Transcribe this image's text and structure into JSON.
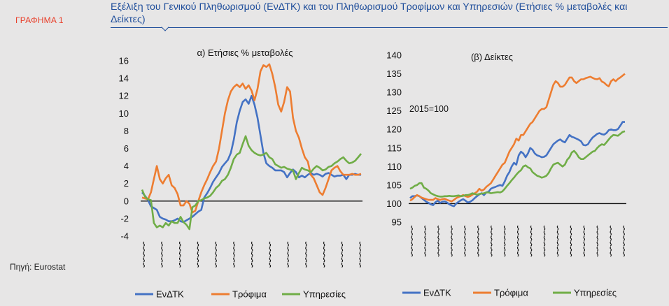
{
  "figure_label": "ΓΡΑΦΗΜΑ 1",
  "source": "Πηγή: Eurostat",
  "title": "Εξέλιξη του Γενικού Πληθωρισμού (ΕνΔΤΚ) και του Πληθωρισμού Τροφίμων και Υπηρεσιών (Ετήσιες % μεταβολές και Δείκτες)",
  "colors": {
    "cpi": "#4472c4",
    "food": "#ed7d31",
    "services": "#70ad47"
  },
  "chart_data": [
    {
      "type": "line",
      "title": "α) Ετήσιες % μεταβολές",
      "ylim": [
        -4,
        16
      ],
      "yticks": [
        16,
        14,
        12,
        10,
        8,
        6,
        4,
        2,
        0,
        -2,
        -4
      ],
      "x_labels_legible": false,
      "n_points": 75,
      "series": [
        {
          "name": "ΕνΔΤΚ",
          "values": [
            1.0,
            0.6,
            0.1,
            -0.6,
            -0.8,
            -1.0,
            -1.8,
            -2.0,
            -2.1,
            -2.3,
            -2.3,
            -2.2,
            -2.0,
            -2.3,
            -2.4,
            -2.2,
            -2.0,
            -1.8,
            -1.5,
            -1.2,
            -1.0,
            0.4,
            0.9,
            1.5,
            2.2,
            2.7,
            3.2,
            3.9,
            4.3,
            4.7,
            5.5,
            7.0,
            9.0,
            10.3,
            11.3,
            11.6,
            11.1,
            12.0,
            11.0,
            9.5,
            7.5,
            5.5,
            4.3,
            4.0,
            3.8,
            3.5,
            3.5,
            3.5,
            3.3,
            2.7,
            3.2,
            3.6,
            3.3,
            2.7,
            2.9,
            2.7,
            3.0,
            3.2,
            3.0,
            3.1,
            3.0,
            2.8,
            3.1,
            3.2,
            3.0,
            2.8,
            2.9,
            2.9,
            3.0,
            2.5,
            3.0,
            3.0,
            3.1,
            3.0,
            3.0
          ]
        },
        {
          "name": "Τρόφιμα",
          "values": [
            0.4,
            0.3,
            0.2,
            1.0,
            2.5,
            4.0,
            2.5,
            2.0,
            2.6,
            3.0,
            1.8,
            1.5,
            0.8,
            -0.5,
            -0.5,
            0.0,
            -0.3,
            -1.3,
            -1.1,
            0.0,
            1.0,
            1.8,
            2.5,
            3.3,
            4.0,
            4.5,
            6.0,
            8.0,
            10.0,
            11.5,
            12.5,
            13.0,
            13.3,
            13.0,
            13.4,
            12.8,
            13.2,
            12.6,
            11.5,
            12.8,
            14.8,
            15.5,
            15.3,
            15.6,
            14.5,
            13.0,
            11.0,
            10.2,
            11.3,
            13.0,
            12.5,
            9.5,
            8.0,
            7.2,
            6.0,
            5.0,
            4.5,
            3.0,
            2.6,
            1.8,
            1.0,
            0.7,
            1.5,
            2.5,
            3.5,
            3.8,
            4.0,
            3.4,
            3.0,
            3.0,
            3.0,
            3.1,
            3.0,
            3.0,
            3.1
          ]
        },
        {
          "name": "Υπηρεσίες",
          "values": [
            1.3,
            0.5,
            0.2,
            0.1,
            -2.5,
            -3.0,
            -2.8,
            -3.0,
            -2.5,
            -2.8,
            -2.3,
            -2.5,
            -2.5,
            -1.8,
            -2.4,
            -2.7,
            -3.2,
            -0.7,
            -0.5,
            0.0,
            0.1,
            0.3,
            0.4,
            0.6,
            1.0,
            1.5,
            1.8,
            2.3,
            2.5,
            3.0,
            3.8,
            4.8,
            5.3,
            5.5,
            6.5,
            7.4,
            6.3,
            5.8,
            5.5,
            5.3,
            5.2,
            5.3,
            5.5,
            5.0,
            4.8,
            4.2,
            4.0,
            3.8,
            3.9,
            3.7,
            3.6,
            3.5,
            2.5,
            3.2,
            3.8,
            3.6,
            3.5,
            3.3,
            3.7,
            4.0,
            3.8,
            3.5,
            3.6,
            3.9,
            4.0,
            4.3,
            4.5,
            4.8,
            5.0,
            4.6,
            4.3,
            4.4,
            4.6,
            5.0,
            5.4
          ]
        }
      ]
    },
    {
      "type": "line",
      "title": "(β) Δείκτες",
      "annotation": "2015=100",
      "ylim": [
        95,
        140
      ],
      "yticks": [
        140,
        135,
        130,
        125,
        120,
        115,
        110,
        105,
        100,
        95
      ],
      "x_labels_legible": false,
      "n_points": 94,
      "series": [
        {
          "name": "ΕνΔΤΚ",
          "values": [
            101.5,
            102.0,
            102.0,
            102.2,
            102.0,
            101.5,
            101.0,
            100.5,
            100.2,
            99.8,
            99.6,
            100.4,
            100.8,
            100.2,
            100.5,
            100.6,
            100.3,
            99.8,
            99.5,
            99.3,
            100.0,
            100.5,
            100.9,
            101.2,
            100.8,
            100.3,
            100.5,
            100.9,
            101.5,
            102.0,
            102.5,
            102.8,
            102.3,
            103.0,
            103.2,
            104.0,
            104.3,
            104.5,
            104.8,
            105.0,
            104.8,
            106.0,
            107.5,
            108.5,
            110.0,
            111.0,
            110.5,
            113.0,
            114.0,
            113.5,
            112.5,
            113.5,
            115.0,
            114.5,
            113.5,
            113.0,
            112.8,
            112.5,
            112.6,
            113.0,
            114.0,
            115.0,
            116.0,
            116.5,
            117.0,
            117.3,
            116.8,
            116.5,
            117.5,
            118.5,
            118.0,
            117.8,
            117.5,
            117.2,
            116.8,
            115.8,
            115.7,
            116.0,
            117.0,
            117.8,
            118.3,
            118.8,
            119.0,
            118.7,
            118.6,
            119.0,
            119.8,
            120.0,
            119.8,
            119.8,
            120.1,
            121.0,
            122.0,
            122.0
          ]
        },
        {
          "name": "Τρόφιμα",
          "values": [
            100.8,
            101.2,
            101.8,
            102.3,
            102.0,
            101.6,
            101.4,
            101.2,
            101.0,
            101.0,
            101.0,
            101.5,
            101.2,
            101.0,
            101.2,
            101.3,
            101.0,
            100.8,
            100.6,
            101.0,
            101.5,
            101.8,
            102.0,
            102.3,
            102.0,
            101.8,
            102.0,
            102.4,
            102.8,
            103.2,
            104.0,
            103.5,
            103.8,
            104.5,
            105.0,
            105.5,
            106.5,
            107.5,
            108.5,
            109.5,
            110.5,
            111.0,
            112.5,
            114.0,
            115.0,
            116.0,
            117.5,
            117.0,
            118.5,
            118.5,
            119.5,
            120.5,
            121.5,
            122.0,
            123.0,
            124.0,
            125.0,
            125.5,
            125.5,
            126.0,
            128.0,
            130.0,
            132.0,
            133.0,
            132.5,
            131.5,
            131.5,
            132.0,
            133.0,
            134.0,
            134.0,
            133.0,
            132.5,
            133.0,
            133.5,
            133.5,
            133.8,
            134.0,
            134.2,
            133.9,
            133.6,
            133.5,
            133.8,
            132.9,
            132.6,
            132.0,
            131.6,
            133.0,
            133.5,
            133.0,
            133.6,
            134.0,
            134.5,
            135.0
          ]
        },
        {
          "name": "Υπηρεσίες",
          "values": [
            104.0,
            104.3,
            104.8,
            105.0,
            105.5,
            105.5,
            104.3,
            104.0,
            103.5,
            102.8,
            102.5,
            102.2,
            102.0,
            101.9,
            101.9,
            102.0,
            102.0,
            102.1,
            102.0,
            102.0,
            102.1,
            102.2,
            102.0,
            102.1,
            102.3,
            102.3,
            102.5,
            102.8,
            102.6,
            102.4,
            102.6,
            102.7,
            102.8,
            103.0,
            103.0,
            102.8,
            102.9,
            103.0,
            103.1,
            103.0,
            103.3,
            104.0,
            104.8,
            105.5,
            106.3,
            107.0,
            107.8,
            108.5,
            109.0,
            110.0,
            110.3,
            109.8,
            109.5,
            108.5,
            108.0,
            107.5,
            107.3,
            107.0,
            107.2,
            107.5,
            108.3,
            109.5,
            110.5,
            110.8,
            111.0,
            110.5,
            110.0,
            110.5,
            111.8,
            112.5,
            113.8,
            114.2,
            113.5,
            112.5,
            112.0,
            112.0,
            112.5,
            113.0,
            113.5,
            114.0,
            114.2,
            115.0,
            115.6,
            116.0,
            115.8,
            116.5,
            117.3,
            118.0,
            118.5,
            118.4,
            118.3,
            118.8,
            119.3,
            119.5
          ]
        }
      ]
    }
  ]
}
